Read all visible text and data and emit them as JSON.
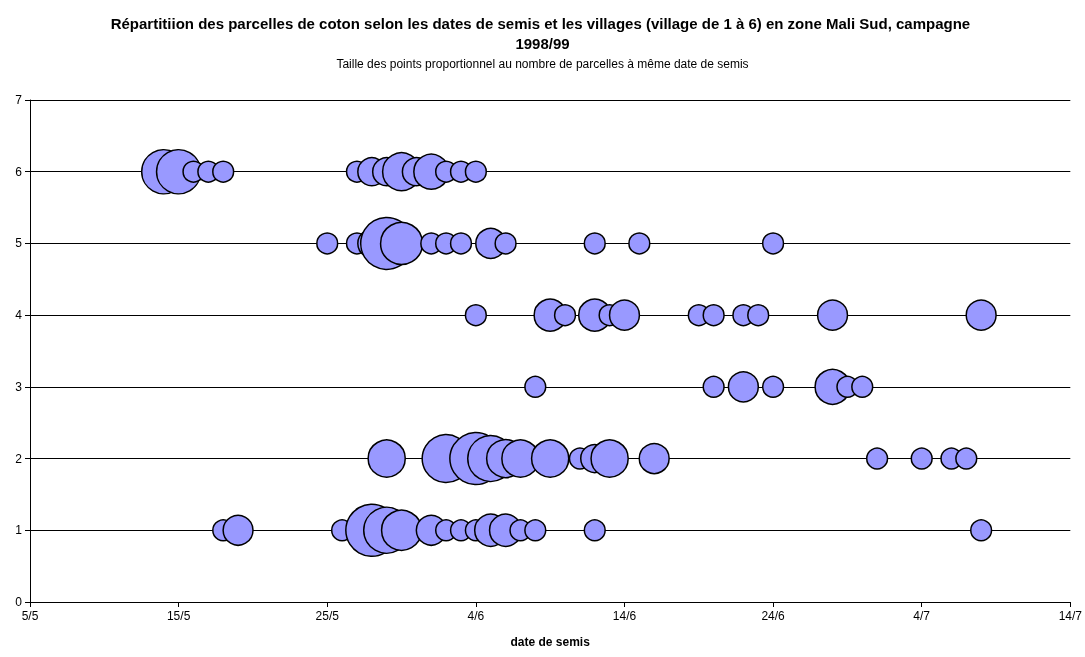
{
  "chart_data": {
    "type": "bubble",
    "title": "Répartitiion des parcelles de coton selon les dates de semis et les villages (village de 1 à 6) en zone Mali Sud, campagne 1998/99",
    "subtitle": "Taille des points proportionnel au nombre de parcelles à même date de semis",
    "xlabel": "date de semis",
    "series": [
      {
        "color": "#9999ff",
        "x": [
          "--05-14",
          "--05-15",
          "--05-16",
          "--05-17",
          "--05-18",
          "--05-27",
          "--05-28",
          "--05-29",
          "--05-30",
          "--05-31",
          "--06-01",
          "--06-02",
          "--06-03",
          "--06-04",
          "--05-25",
          "--05-27",
          "--05-28",
          "--05-29",
          "--05-30",
          "--06-01",
          "--06-02",
          "--06-03",
          "--06-05",
          "--06-06",
          "--06-12",
          "--06-15",
          "--06-24",
          "--06-04",
          "--06-09",
          "--06-10",
          "--06-12",
          "--06-13",
          "--06-14",
          "--06-19",
          "--06-20",
          "--06-22",
          "--06-23",
          "--06-28",
          "--07-08",
          "--06-08",
          "--06-20",
          "--06-22",
          "--06-24",
          "--06-28",
          "--06-29",
          "--06-30",
          "--05-29",
          "--06-02",
          "--06-04",
          "--06-05",
          "--06-06",
          "--06-07",
          "--06-09",
          "--06-11",
          "--06-12",
          "--06-13",
          "--06-16",
          "--07-01",
          "--07-04",
          "--07-06",
          "--07-07",
          "--05-18",
          "--05-19",
          "--05-26",
          "--05-28",
          "--05-29",
          "--05-30",
          "--06-01",
          "--06-02",
          "--06-03",
          "--06-04",
          "--06-05",
          "--06-06",
          "--06-07",
          "--06-08",
          "--06-12",
          "--07-08"
        ],
        "values": [
          6,
          6,
          6,
          6,
          6,
          6,
          6,
          6,
          6,
          6,
          6,
          6,
          6,
          6,
          5,
          5,
          5,
          5,
          5,
          5,
          5,
          5,
          5,
          5,
          5,
          5,
          5,
          4,
          4,
          4,
          4,
          4,
          4,
          4,
          4,
          4,
          4,
          4,
          4,
          3,
          3,
          3,
          3,
          3,
          3,
          3,
          2,
          2,
          2,
          2,
          2,
          2,
          2,
          2,
          2,
          2,
          2,
          2,
          2,
          2,
          2,
          1,
          1,
          1,
          1,
          1,
          1,
          1,
          1,
          1,
          1,
          1,
          1,
          1,
          1,
          1,
          1
        ],
        "sizes": [
          0.72,
          0.72,
          0.16,
          0.16,
          0.16,
          0.16,
          0.29,
          0.29,
          0.53,
          0.29,
          0.45,
          0.16,
          0.16,
          0.16,
          0.16,
          0.16,
          0.29,
          1,
          0.65,
          0.16,
          0.16,
          0.16,
          0.33,
          0.16,
          0.16,
          0.16,
          0.16,
          0.16,
          0.38,
          0.16,
          0.38,
          0.16,
          0.33,
          0.16,
          0.16,
          0.16,
          0.16,
          0.33,
          0.33,
          0.16,
          0.16,
          0.33,
          0.16,
          0.45,
          0.16,
          0.16,
          0.51,
          0.85,
          1,
          0.78,
          0.53,
          0.51,
          0.51,
          0.16,
          0.29,
          0.51,
          0.33,
          0.16,
          0.16,
          0.16,
          0.16,
          0.16,
          0.33,
          0.16,
          1,
          0.78,
          0.59,
          0.33,
          0.16,
          0.16,
          0.16,
          0.38,
          0.38,
          0.16,
          0.16,
          0.16,
          0.16
        ]
      }
    ],
    "xlim": [
      "--05-05",
      "--07-14"
    ],
    "xticks": [
      {
        "value": "--05-05",
        "label": "5/5"
      },
      {
        "value": "--05-15",
        "label": "15/5"
      },
      {
        "value": "--05-25",
        "label": "25/5"
      },
      {
        "value": "--06-04",
        "label": "4/6"
      },
      {
        "value": "--06-14",
        "label": "14/6"
      },
      {
        "value": "--06-24",
        "label": "24/6"
      },
      {
        "value": "--07-04",
        "label": "4/7"
      },
      {
        "value": "--07-14",
        "label": "14/7"
      }
    ],
    "ylim": [
      0,
      7
    ],
    "yticks": [
      0,
      1,
      2,
      3,
      4,
      5,
      6,
      7
    ],
    "grid": "y",
    "marker": "circle"
  }
}
